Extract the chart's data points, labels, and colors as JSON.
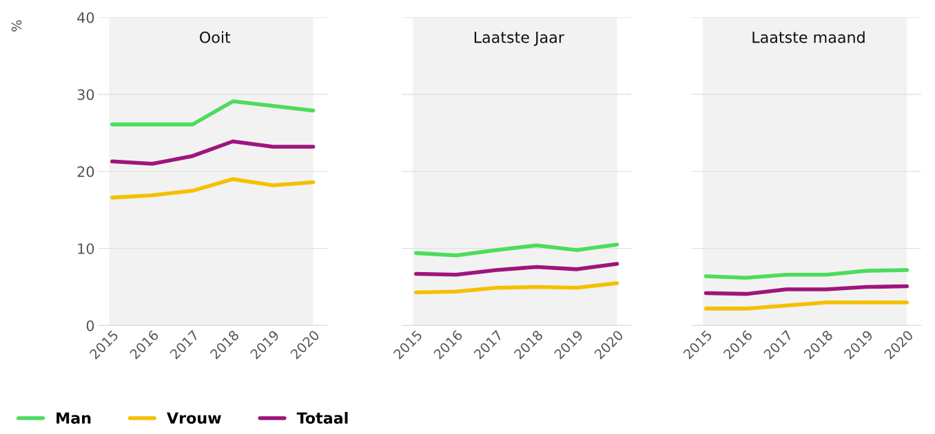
{
  "chart_data": [
    {
      "type": "line",
      "title": "Ooit",
      "ylabel": "%",
      "categories": [
        "2015",
        "2016",
        "2017",
        "2018",
        "2019",
        "2020"
      ],
      "ylim": [
        0,
        40
      ],
      "yticks": [
        0,
        10,
        20,
        30,
        40
      ],
      "grid": "y",
      "legend": "bottom left",
      "marker": "none",
      "line_style": "solid",
      "bands": [
        {
          "axis": "x",
          "from": "2015",
          "to": "2020",
          "color": "#f2f2f2"
        }
      ],
      "series": [
        {
          "name": "Man",
          "color": "#4cdc5c",
          "values": [
            26.1,
            26.1,
            26.1,
            29.1,
            28.5,
            27.9
          ]
        },
        {
          "name": "Vrouw",
          "color": "#f5c000",
          "values": [
            16.6,
            16.9,
            17.5,
            19.0,
            18.2,
            18.6
          ]
        },
        {
          "name": "Totaal",
          "color": "#a0147c",
          "values": [
            21.3,
            21.0,
            22.0,
            23.9,
            23.2,
            23.2
          ]
        }
      ]
    },
    {
      "type": "line",
      "title": "Laatste Jaar",
      "categories": [
        "2015",
        "2016",
        "2017",
        "2018",
        "2019",
        "2020"
      ],
      "ylim": [
        0,
        40
      ],
      "yticks": [
        0,
        10,
        20,
        30,
        40
      ],
      "grid": "y",
      "tick_labels": "x",
      "marker": "none",
      "line_style": "solid",
      "bands": [
        {
          "axis": "x",
          "from": "2015",
          "to": "2020",
          "color": "#f2f2f2"
        }
      ],
      "series": [
        {
          "color": "#4cdc5c",
          "values": [
            9.4,
            9.1,
            9.8,
            10.4,
            9.8,
            10.5
          ]
        },
        {
          "color": "#f5c000",
          "values": [
            4.3,
            4.4,
            4.9,
            5.0,
            4.9,
            5.5
          ]
        },
        {
          "color": "#a0147c",
          "values": [
            6.7,
            6.6,
            7.2,
            7.6,
            7.3,
            8.0
          ]
        }
      ]
    },
    {
      "type": "line",
      "title": "Laatste maand",
      "categories": [
        "2015",
        "2016",
        "2017",
        "2018",
        "2019",
        "2020"
      ],
      "ylim": [
        0,
        40
      ],
      "yticks": [
        0,
        10,
        20,
        30,
        40
      ],
      "grid": "y",
      "tick_labels": "x",
      "marker": "none",
      "line_style": "solid",
      "bands": [
        {
          "axis": "x",
          "from": "2015",
          "to": "2020",
          "color": "#f2f2f2"
        }
      ],
      "series": [
        {
          "color": "#4cdc5c",
          "values": [
            6.4,
            6.2,
            6.6,
            6.6,
            7.1,
            7.2
          ]
        },
        {
          "color": "#f5c000",
          "values": [
            2.2,
            2.2,
            2.6,
            3.0,
            3.0,
            3.0
          ]
        },
        {
          "color": "#a0147c",
          "values": [
            4.2,
            4.1,
            4.7,
            4.7,
            5.0,
            5.1
          ]
        }
      ]
    }
  ]
}
